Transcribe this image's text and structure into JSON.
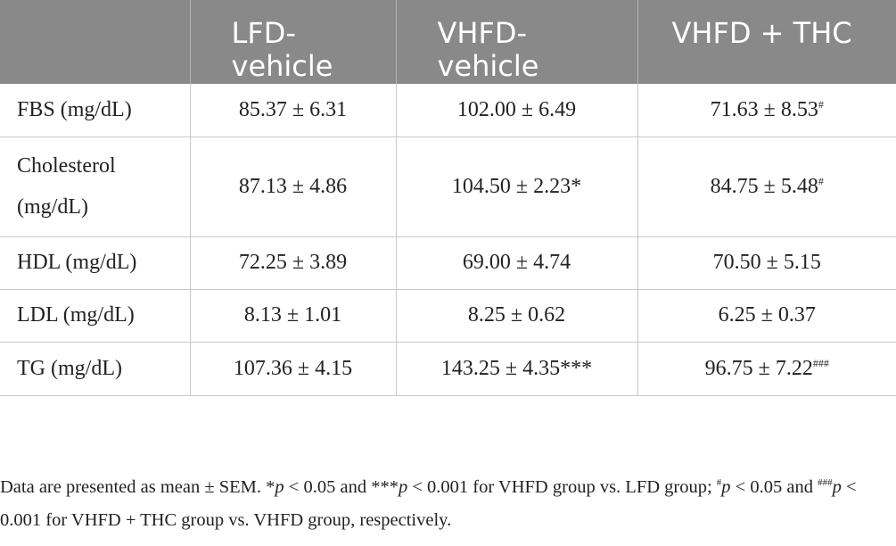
{
  "table": {
    "headers": [
      "",
      "LFD-\nvehicle",
      "VHFD-\nvehicle",
      "VHFD + THC"
    ],
    "header_lines": [
      [],
      [
        "LFD-",
        "vehicle"
      ],
      [
        "VHFD-",
        "vehicle"
      ],
      [
        "VHFD + THC"
      ]
    ],
    "rows": [
      {
        "label_lines": [
          "FBS (mg/dL)"
        ],
        "cells": [
          {
            "value": "85.37 ± 6.31",
            "mark": ""
          },
          {
            "value": "102.00 ± 6.49",
            "mark": ""
          },
          {
            "value": "71.63 ± 8.53",
            "mark": "#"
          }
        ]
      },
      {
        "label_lines": [
          "Cholesterol",
          "(mg/dL)"
        ],
        "cells": [
          {
            "value": "87.13 ± 4.86",
            "mark": ""
          },
          {
            "value": "104.50 ± 2.23*",
            "mark": ""
          },
          {
            "value": "84.75 ± 5.48",
            "mark": "#"
          }
        ]
      },
      {
        "label_lines": [
          "HDL (mg/dL)"
        ],
        "cells": [
          {
            "value": "72.25 ± 3.89",
            "mark": ""
          },
          {
            "value": "69.00 ± 4.74",
            "mark": ""
          },
          {
            "value": "70.50 ± 5.15",
            "mark": ""
          }
        ]
      },
      {
        "label_lines": [
          "LDL (mg/dL)"
        ],
        "cells": [
          {
            "value": "8.13 ± 1.01",
            "mark": ""
          },
          {
            "value": "8.25 ± 0.62",
            "mark": ""
          },
          {
            "value": "6.25 ± 0.37",
            "mark": ""
          }
        ]
      },
      {
        "label_lines": [
          "TG (mg/dL)"
        ],
        "cells": [
          {
            "value": "107.36 ± 4.15",
            "mark": ""
          },
          {
            "value": "143.25 ± 4.35***",
            "mark": ""
          },
          {
            "value": "96.75 ± 7.22",
            "mark": "###"
          }
        ]
      }
    ]
  },
  "footnote": {
    "part1": "Data are presented as mean ± SEM. *",
    "p1": "p",
    "part2": " < 0.05 and ***",
    "p2": "p",
    "part3": " < 0.001 for VHFD group vs. LFD group; ",
    "sup1": "#",
    "p3": "p",
    "part4": " < 0.05 and ",
    "sup2": "###",
    "p4": "p",
    "part5": " < 0.001 for VHFD + THC group vs. VHFD group, respectively."
  }
}
